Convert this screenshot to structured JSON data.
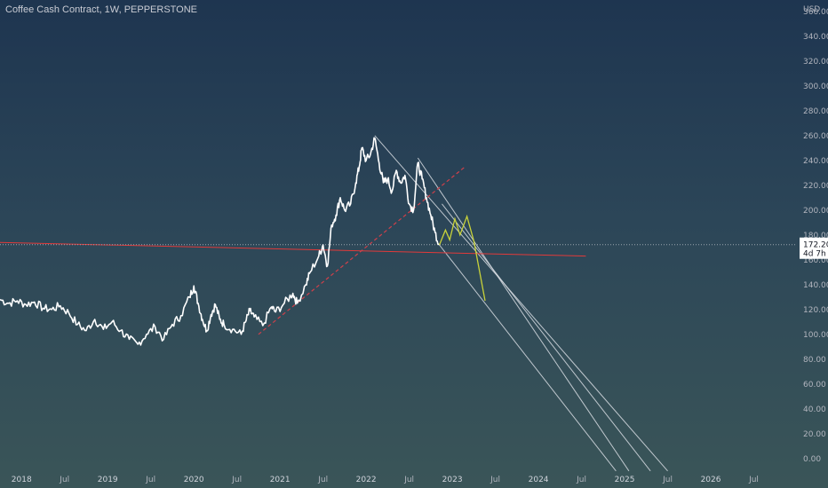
{
  "header": {
    "title": "Coffee Cash Contract, 1W, PEPPERSTONE"
  },
  "axis": {
    "currency": "USD",
    "price_label": "172.20",
    "countdown_label": "4d 7h"
  },
  "colors": {
    "candle": "#ffffff",
    "channel": "#d8dde3",
    "red_line": "#e23a3a",
    "dashed_line": "#d0404a",
    "projection": "#c8d23a",
    "current_price_line": "#9aa4ad"
  },
  "chart_data": {
    "type": "line",
    "xlabel": "",
    "ylabel": "USD",
    "ylim": [
      -8,
      362
    ],
    "xlim": [
      2017.75,
      2027.0
    ],
    "y_ticks": [
      0,
      20,
      40,
      60,
      80,
      100,
      120,
      140,
      160,
      180,
      200,
      220,
      240,
      260,
      280,
      300,
      320,
      340,
      360
    ],
    "y_tick_labels": [
      "0.00",
      "20.00",
      "40.00",
      "60.00",
      "80.00",
      "100.00",
      "120.00",
      "140.00",
      "160.00",
      "180.00",
      "200.00",
      "220.00",
      "240.00",
      "260.00",
      "280.00",
      "300.00",
      "320.00",
      "340.00",
      "360.00"
    ],
    "x_ticks": [
      {
        "x": 2018.0,
        "label": "2018"
      },
      {
        "x": 2018.5,
        "label": "Jul"
      },
      {
        "x": 2019.0,
        "label": "2019"
      },
      {
        "x": 2019.5,
        "label": "Jul"
      },
      {
        "x": 2020.0,
        "label": "2020"
      },
      {
        "x": 2020.5,
        "label": "Jul"
      },
      {
        "x": 2021.0,
        "label": "2021"
      },
      {
        "x": 2021.5,
        "label": "Jul"
      },
      {
        "x": 2022.0,
        "label": "2022"
      },
      {
        "x": 2022.5,
        "label": "Jul"
      },
      {
        "x": 2023.0,
        "label": "2023"
      },
      {
        "x": 2023.5,
        "label": "Jul"
      },
      {
        "x": 2024.0,
        "label": "2024"
      },
      {
        "x": 2024.5,
        "label": "Jul"
      },
      {
        "x": 2025.0,
        "label": "2025"
      },
      {
        "x": 2025.5,
        "label": "Jul"
      },
      {
        "x": 2026.0,
        "label": "2026"
      },
      {
        "x": 2026.5,
        "label": "Jul"
      }
    ],
    "current_price": 172.2,
    "series": [
      {
        "kind": "price",
        "points": [
          [
            2017.75,
            128
          ],
          [
            2017.85,
            125
          ],
          [
            2017.95,
            127
          ],
          [
            2018.05,
            124
          ],
          [
            2018.15,
            126
          ],
          [
            2018.25,
            121
          ],
          [
            2018.35,
            120
          ],
          [
            2018.45,
            123
          ],
          [
            2018.55,
            117
          ],
          [
            2018.65,
            108
          ],
          [
            2018.75,
            103
          ],
          [
            2018.85,
            112
          ],
          [
            2018.95,
            104
          ],
          [
            2019.05,
            110
          ],
          [
            2019.15,
            103
          ],
          [
            2019.25,
            96
          ],
          [
            2019.35,
            92
          ],
          [
            2019.45,
            100
          ],
          [
            2019.55,
            106
          ],
          [
            2019.65,
            96
          ],
          [
            2019.75,
            108
          ],
          [
            2019.85,
            115
          ],
          [
            2019.95,
            130
          ],
          [
            2020.0,
            139
          ],
          [
            2020.05,
            125
          ],
          [
            2020.1,
            112
          ],
          [
            2020.15,
            103
          ],
          [
            2020.2,
            116
          ],
          [
            2020.25,
            124
          ],
          [
            2020.3,
            112
          ],
          [
            2020.35,
            108
          ],
          [
            2020.45,
            104
          ],
          [
            2020.55,
            100
          ],
          [
            2020.6,
            110
          ],
          [
            2020.65,
            119
          ],
          [
            2020.7,
            114
          ],
          [
            2020.8,
            107
          ],
          [
            2020.9,
            122
          ],
          [
            2020.95,
            118
          ],
          [
            2021.05,
            125
          ],
          [
            2021.15,
            133
          ],
          [
            2021.2,
            125
          ],
          [
            2021.3,
            140
          ],
          [
            2021.35,
            150
          ],
          [
            2021.45,
            163
          ],
          [
            2021.5,
            172
          ],
          [
            2021.55,
            155
          ],
          [
            2021.6,
            188
          ],
          [
            2021.65,
            196
          ],
          [
            2021.7,
            210
          ],
          [
            2021.75,
            200
          ],
          [
            2021.82,
            205
          ],
          [
            2021.88,
            222
          ],
          [
            2021.92,
            235
          ],
          [
            2021.95,
            250
          ],
          [
            2022.0,
            240
          ],
          [
            2022.05,
            245
          ],
          [
            2022.1,
            258
          ],
          [
            2022.15,
            238
          ],
          [
            2022.2,
            222
          ],
          [
            2022.25,
            225
          ],
          [
            2022.3,
            215
          ],
          [
            2022.35,
            232
          ],
          [
            2022.4,
            222
          ],
          [
            2022.45,
            228
          ],
          [
            2022.5,
            205
          ],
          [
            2022.55,
            200
          ],
          [
            2022.6,
            238
          ],
          [
            2022.65,
            225
          ],
          [
            2022.7,
            210
          ],
          [
            2022.75,
            196
          ],
          [
            2022.8,
            182
          ],
          [
            2022.85,
            172
          ]
        ]
      },
      {
        "kind": "projection",
        "points": [
          [
            2022.85,
            172
          ],
          [
            2022.92,
            184
          ],
          [
            2022.97,
            176
          ],
          [
            2023.03,
            193
          ],
          [
            2023.09,
            180
          ],
          [
            2023.17,
            195
          ],
          [
            2023.25,
            175
          ],
          [
            2023.38,
            127
          ]
        ]
      }
    ],
    "trendlines": [
      {
        "kind": "channel",
        "points": [
          [
            2022.1,
            260
          ],
          [
            2025.5,
            -10
          ]
        ]
      },
      {
        "kind": "channel",
        "points": [
          [
            2022.6,
            242
          ],
          [
            2025.05,
            -10
          ]
        ]
      },
      {
        "kind": "channel",
        "points": [
          [
            2022.85,
            172
          ],
          [
            2024.9,
            -10
          ]
        ]
      },
      {
        "kind": "channel",
        "points": [
          [
            2022.88,
            205
          ],
          [
            2025.3,
            -10
          ]
        ]
      },
      {
        "kind": "support",
        "points": [
          [
            2017.75,
            174
          ],
          [
            2024.55,
            163
          ]
        ]
      },
      {
        "kind": "dashed",
        "points": [
          [
            2020.75,
            100
          ],
          [
            2023.15,
            235
          ]
        ]
      }
    ]
  }
}
